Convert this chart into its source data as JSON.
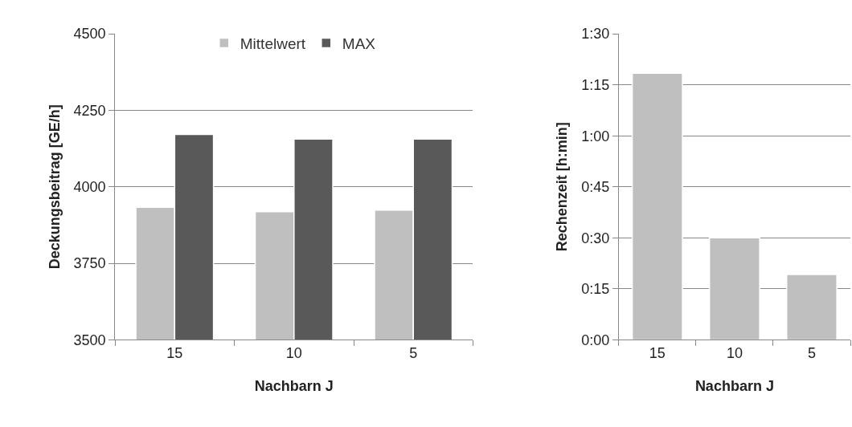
{
  "chart_data": [
    {
      "type": "bar",
      "xlabel": "Nachbarn J",
      "ylabel": "Deckungsbeitrag [GE/h]",
      "categories": [
        "15",
        "10",
        "5"
      ],
      "series": [
        {
          "name": "Mittelwert",
          "color": "#bfbfbf",
          "values": [
            3933,
            3919,
            3924
          ]
        },
        {
          "name": "MAX",
          "color": "#595959",
          "values": [
            4171,
            4156,
            4156
          ]
        }
      ],
      "ylim": [
        3500,
        4500
      ],
      "yticks": [
        3500,
        3750,
        4000,
        4250,
        4500
      ],
      "grid": "y",
      "legend": "top"
    },
    {
      "type": "bar",
      "xlabel": "Nachbarn J",
      "ylabel": "Rechenzeit [h:min]",
      "categories": [
        "15",
        "10",
        "5"
      ],
      "series": [
        {
          "color": "#bfbfbf",
          "values": [
            78.4,
            30,
            19.2
          ]
        }
      ],
      "ylim": [
        0,
        90
      ],
      "yticks": [
        {
          "value": 0,
          "label": "0:00"
        },
        {
          "value": 15,
          "label": "0:15"
        },
        {
          "value": 30,
          "label": "0:30"
        },
        {
          "value": 45,
          "label": "0:45"
        },
        {
          "value": 60,
          "label": "1:00"
        },
        {
          "value": 75,
          "label": "1:15"
        },
        {
          "value": 90,
          "label": "1:30"
        }
      ],
      "grid": "y"
    }
  ]
}
